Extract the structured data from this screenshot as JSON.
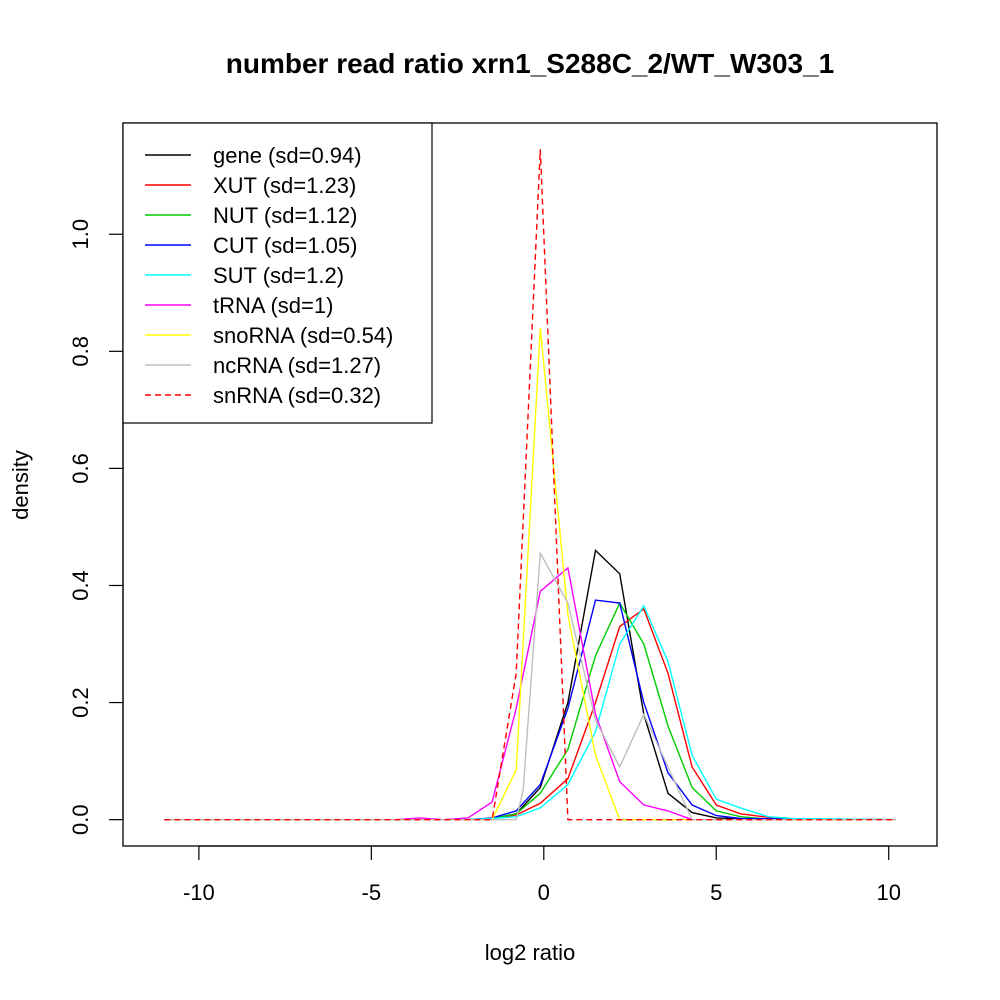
{
  "chart_data": {
    "type": "line",
    "title": "number read ratio xrn1_S288C_2/WT_W303_1",
    "xlabel": "log2 ratio",
    "ylabel": "density",
    "xlim": [
      -12.2,
      11.4
    ],
    "ylim": [
      -0.045,
      1.19
    ],
    "xticks": [
      -10,
      -5,
      0,
      5,
      10
    ],
    "yticks": [
      0.0,
      0.2,
      0.4,
      0.6,
      0.8,
      1.0
    ],
    "xtick_labels": [
      "-10",
      "-5",
      "0",
      "5",
      "10"
    ],
    "ytick_labels": [
      "0.0",
      "0.2",
      "0.4",
      "0.6",
      "0.8",
      "1.0"
    ],
    "grid": false,
    "legend_position": "top-left",
    "series": [
      {
        "name": "gene (sd=0.94)",
        "color": "#000000",
        "dash": "solid",
        "x": [
          -11.0,
          -2.2,
          -1.5,
          -0.8,
          -0.1,
          0.7,
          1.5,
          2.2,
          2.9,
          3.6,
          4.3,
          5.0,
          6.0,
          10.2
        ],
        "y": [
          0,
          0,
          0.002,
          0.01,
          0.055,
          0.2,
          0.46,
          0.42,
          0.18,
          0.045,
          0.012,
          0.003,
          0.001,
          0
        ]
      },
      {
        "name": "XUT (sd=1.23)",
        "color": "#ff0000",
        "dash": "solid",
        "x": [
          -11.0,
          -2.2,
          -1.5,
          -0.8,
          -0.1,
          0.7,
          1.5,
          2.2,
          2.9,
          3.6,
          4.3,
          5.0,
          5.7,
          6.5,
          7.2,
          10.2
        ],
        "y": [
          0,
          0,
          0.002,
          0.008,
          0.028,
          0.07,
          0.2,
          0.33,
          0.36,
          0.25,
          0.09,
          0.025,
          0.01,
          0.004,
          0.001,
          0
        ]
      },
      {
        "name": "NUT (sd=1.12)",
        "color": "#00cd00",
        "dash": "solid",
        "x": [
          -11.0,
          -2.2,
          -1.5,
          -0.8,
          -0.1,
          0.7,
          1.5,
          2.2,
          2.9,
          3.6,
          4.3,
          5.0,
          5.7,
          6.5,
          10.2
        ],
        "y": [
          0,
          0,
          0.002,
          0.01,
          0.045,
          0.12,
          0.28,
          0.37,
          0.3,
          0.16,
          0.055,
          0.015,
          0.005,
          0.001,
          0
        ]
      },
      {
        "name": "CUT (sd=1.05)",
        "color": "#0000ff",
        "dash": "solid",
        "x": [
          -11.0,
          -2.2,
          -1.5,
          -0.8,
          -0.1,
          0.7,
          1.5,
          2.2,
          2.9,
          3.6,
          4.3,
          5.0,
          5.7,
          10.2
        ],
        "y": [
          0,
          0,
          0.003,
          0.015,
          0.06,
          0.19,
          0.375,
          0.37,
          0.2,
          0.08,
          0.025,
          0.007,
          0.002,
          0
        ]
      },
      {
        "name": "SUT (sd=1.2)",
        "color": "#00ffff",
        "dash": "solid",
        "x": [
          -11.0,
          -2.2,
          -1.5,
          -0.8,
          -0.1,
          0.7,
          1.5,
          2.2,
          2.9,
          3.6,
          4.3,
          5.0,
          5.7,
          6.5,
          7.2,
          10.2
        ],
        "y": [
          0,
          0,
          0.002,
          0.005,
          0.02,
          0.06,
          0.15,
          0.3,
          0.365,
          0.27,
          0.11,
          0.035,
          0.02,
          0.005,
          0.002,
          0
        ]
      },
      {
        "name": "tRNA (sd=1)",
        "color": "#ff00ff",
        "dash": "solid",
        "x": [
          -11.0,
          -4.3,
          -3.6,
          -2.9,
          -2.2,
          -1.5,
          -0.8,
          -0.1,
          0.7,
          1.5,
          2.2,
          2.9,
          3.6,
          4.3,
          10.2
        ],
        "y": [
          0,
          0,
          0.003,
          0,
          0.003,
          0.03,
          0.19,
          0.39,
          0.43,
          0.18,
          0.065,
          0.025,
          0.015,
          0,
          0
        ]
      },
      {
        "name": "snoRNA (sd=0.54)",
        "color": "#ffff00",
        "dash": "solid",
        "x": [
          -11.0,
          -1.5,
          -0.8,
          -0.1,
          0.7,
          1.5,
          2.2,
          10.2
        ],
        "y": [
          0,
          0,
          0.085,
          0.84,
          0.35,
          0.11,
          0,
          0
        ]
      },
      {
        "name": "ncRNA (sd=1.27)",
        "color": "#bebebe",
        "dash": "solid",
        "x": [
          -11.0,
          -0.8,
          -0.6,
          -0.1,
          0.7,
          1.5,
          2.2,
          2.9,
          3.6,
          4.3,
          10.2
        ],
        "y": [
          0,
          0,
          0.05,
          0.455,
          0.37,
          0.17,
          0.09,
          0.18,
          0.09,
          0,
          0
        ]
      },
      {
        "name": "snRNA (sd=0.32)",
        "color": "#ff0000",
        "dash": "dashed",
        "x": [
          -11.0,
          -1.5,
          -0.8,
          -0.1,
          0.7,
          10.2
        ],
        "y": [
          0,
          0,
          0.25,
          1.145,
          0,
          0
        ]
      }
    ]
  }
}
